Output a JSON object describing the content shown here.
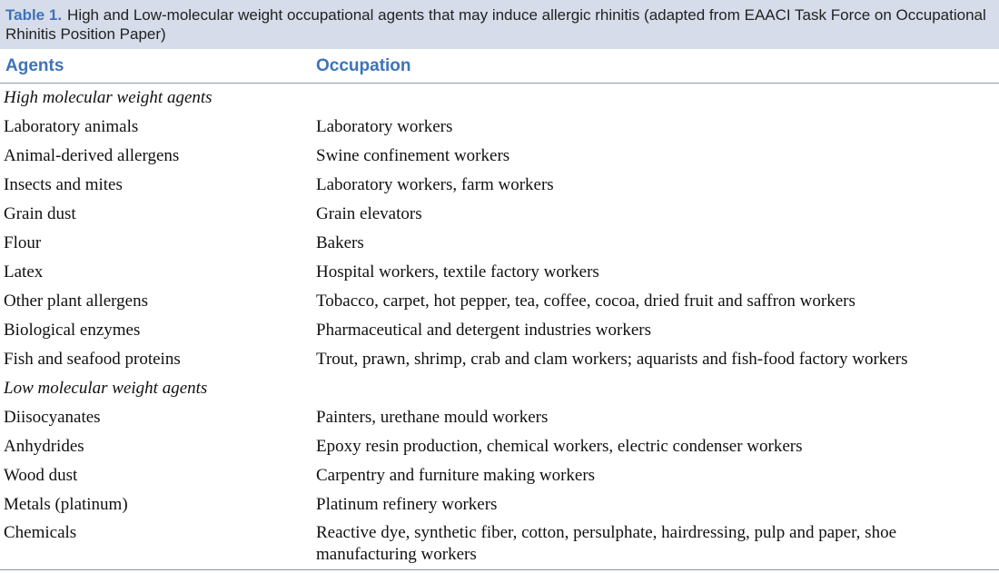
{
  "caption": {
    "label": "Table 1.",
    "text": "High and Low-molecular weight occupational agents that may induce allergic rhinitis (adapted from EAACI Task Force on Occupational Rhinitis Position Paper)"
  },
  "table": {
    "headers": [
      "Agents",
      "Occupation"
    ],
    "sections": [
      {
        "title": "High molecular weight agents",
        "rows": [
          [
            "Laboratory animals",
            "Laboratory workers"
          ],
          [
            "Animal-derived allergens",
            "Swine confinement workers"
          ],
          [
            "Insects and mites",
            "Laboratory workers, farm workers"
          ],
          [
            "Grain dust",
            "Grain elevators"
          ],
          [
            "Flour",
            "Bakers"
          ],
          [
            "Latex",
            "Hospital workers, textile factory workers"
          ],
          [
            "Other plant allergens",
            "Tobacco, carpet, hot pepper, tea, coffee, cocoa, dried fruit and saffron workers"
          ],
          [
            "Biological enzymes",
            "Pharmaceutical and detergent industries workers"
          ],
          [
            "Fish and seafood proteins",
            "Trout, prawn, shrimp, crab and clam workers; aquarists and fish-food factory workers"
          ]
        ]
      },
      {
        "title": "Low molecular weight agents",
        "rows": [
          [
            "Diisocyanates",
            "Painters, urethane mould workers"
          ],
          [
            "Anhydrides",
            "Epoxy resin production, chemical workers, electric condenser workers"
          ],
          [
            "Wood dust",
            "Carpentry and furniture making workers"
          ],
          [
            "Metals (platinum)",
            "Platinum refinery workers"
          ],
          [
            "Chemicals",
            "Reactive dye, synthetic fiber, cotton, persulphate, hairdressing, pulp and paper, shoe manufacturing workers"
          ]
        ]
      }
    ]
  }
}
